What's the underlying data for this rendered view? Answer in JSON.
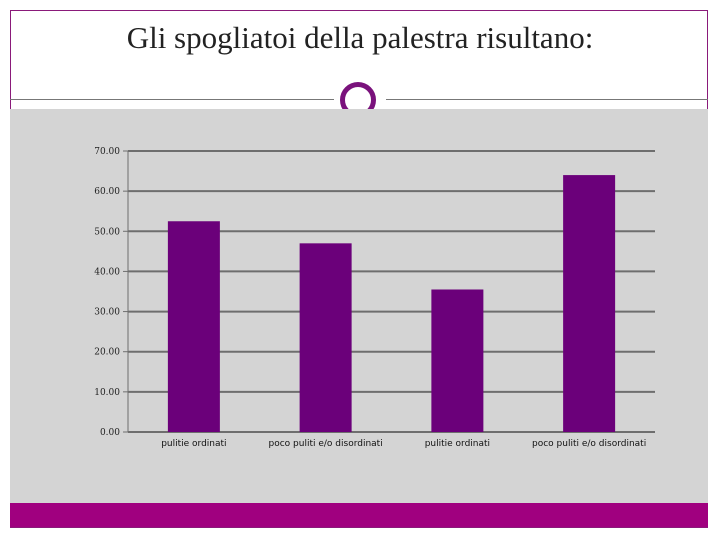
{
  "slide": {
    "title": "Gli spogliatoi della palestra risultano:",
    "accent_color": "#7a127c",
    "footer_color": "#a0007f",
    "plot_background": "#d4d4d4"
  },
  "chart_data": {
    "type": "bar",
    "title": "",
    "xlabel": "",
    "ylabel": "",
    "categories": [
      "pulitie ordinati",
      "poco puliti e/o disordinati",
      "pulitie ordinati",
      "poco puliti e/o disordinati"
    ],
    "values": [
      52.5,
      47.0,
      35.5,
      64.0
    ],
    "ylim": [
      0,
      70
    ],
    "yticks": [
      "0.00",
      "10.00",
      "20.00",
      "30.00",
      "40.00",
      "50.00",
      "60.00",
      "70.00"
    ],
    "bar_color": "#6b007a",
    "grid": true,
    "legend": "none"
  }
}
